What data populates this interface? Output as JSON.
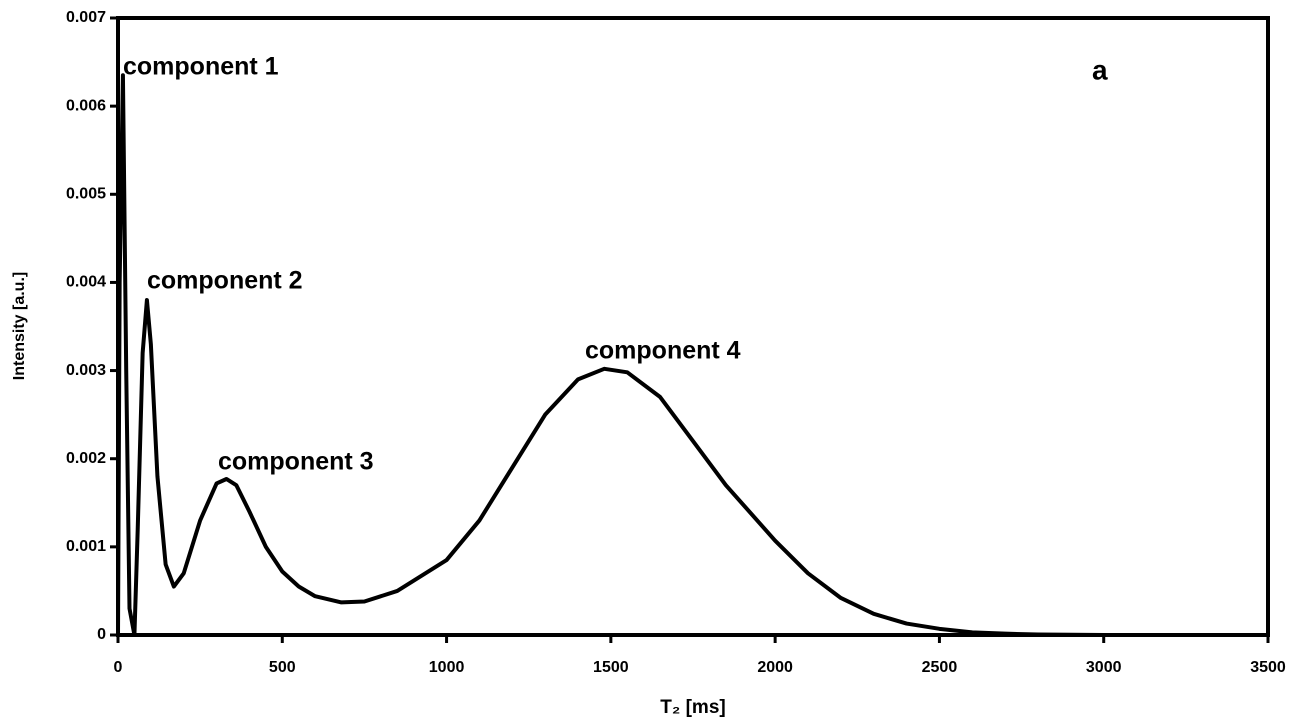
{
  "chart_data": {
    "type": "line",
    "x_label": "T₂  [ms]",
    "y_label": "Intensity [a.u.]",
    "annotations": [
      "component 1",
      "component 2",
      "component 3",
      "component 4",
      "a"
    ],
    "x": [
      0,
      5,
      15,
      25,
      35,
      50,
      60,
      75,
      88,
      100,
      120,
      145,
      170,
      200,
      250,
      300,
      330,
      360,
      400,
      450,
      500,
      550,
      600,
      680,
      750,
      850,
      1000,
      1100,
      1200,
      1300,
      1400,
      1480,
      1550,
      1650,
      1750,
      1850,
      2000,
      2100,
      2200,
      2300,
      2400,
      2500,
      2600,
      2700,
      2800,
      3000
    ],
    "series": [
      {
        "color": "#000000",
        "values": [
          0,
          0.004,
          0.00635,
          0.003,
          0.0003,
          0,
          0.0012,
          0.0032,
          0.0038,
          0.0033,
          0.0018,
          0.0008,
          0.00055,
          0.0007,
          0.0013,
          0.00172,
          0.00177,
          0.0017,
          0.0014,
          0.001,
          0.00072,
          0.00055,
          0.00044,
          0.00037,
          0.00038,
          0.0005,
          0.00085,
          0.0013,
          0.0019,
          0.0025,
          0.0029,
          0.00302,
          0.00298,
          0.0027,
          0.0022,
          0.0017,
          0.00107,
          0.0007,
          0.00042,
          0.00024,
          0.00013,
          7e-05,
          3e-05,
          1.5e-05,
          5e-06,
          0
        ]
      }
    ],
    "xlim": [
      0,
      3500
    ],
    "xticks": [
      0,
      500,
      1000,
      1500,
      2000,
      2500,
      3000,
      3500
    ],
    "ylim": [
      0,
      0.007
    ],
    "yticks": [
      0,
      0.001,
      0.002,
      0.003,
      0.004,
      0.005,
      0.006,
      0.007
    ]
  }
}
